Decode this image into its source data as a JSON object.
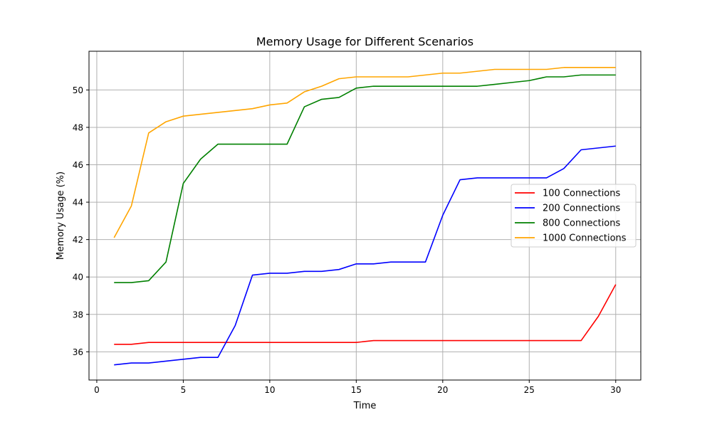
{
  "chart_data": {
    "type": "line",
    "title": "Memory Usage for Different Scenarios",
    "xlabel": "Time",
    "ylabel": "Memory Usage (%)",
    "xlim": [
      -0.45,
      31.45
    ],
    "ylim": [
      34.49,
      52.07
    ],
    "xticks": [
      0,
      5,
      10,
      15,
      20,
      25,
      30
    ],
    "yticks": [
      36,
      38,
      40,
      42,
      44,
      46,
      48,
      50
    ],
    "grid": true,
    "legend_position": "right",
    "x": [
      1,
      2,
      3,
      4,
      5,
      6,
      7,
      8,
      9,
      10,
      11,
      12,
      13,
      14,
      15,
      16,
      17,
      18,
      19,
      20,
      21,
      22,
      23,
      24,
      25,
      26,
      27,
      28,
      29,
      30
    ],
    "series": [
      {
        "name": "100 Connections",
        "color": "#ff0000",
        "values": [
          36.4,
          36.4,
          36.5,
          36.5,
          36.5,
          36.5,
          36.5,
          36.5,
          36.5,
          36.5,
          36.5,
          36.5,
          36.5,
          36.5,
          36.5,
          36.6,
          36.6,
          36.6,
          36.6,
          36.6,
          36.6,
          36.6,
          36.6,
          36.6,
          36.6,
          36.6,
          36.6,
          36.6,
          37.9,
          39.6
        ]
      },
      {
        "name": "200 Connections",
        "color": "#0000ff",
        "values": [
          35.3,
          35.4,
          35.4,
          35.5,
          35.6,
          35.7,
          35.7,
          37.4,
          40.1,
          40.2,
          40.2,
          40.3,
          40.3,
          40.4,
          40.7,
          40.7,
          40.8,
          40.8,
          40.8,
          43.3,
          45.2,
          45.3,
          45.3,
          45.3,
          45.3,
          45.3,
          45.8,
          46.8,
          46.9,
          47.0
        ]
      },
      {
        "name": "800 Connections",
        "color": "#008000",
        "values": [
          39.7,
          39.7,
          39.8,
          40.8,
          45.0,
          46.3,
          47.1,
          47.1,
          47.1,
          47.1,
          47.1,
          49.1,
          49.5,
          49.6,
          50.1,
          50.2,
          50.2,
          50.2,
          50.2,
          50.2,
          50.2,
          50.2,
          50.3,
          50.4,
          50.5,
          50.7,
          50.7,
          50.8,
          50.8,
          50.8
        ]
      },
      {
        "name": "1000 Connections",
        "color": "#ffa500",
        "values": [
          42.1,
          43.8,
          47.7,
          48.3,
          48.6,
          48.7,
          48.8,
          48.9,
          49.0,
          49.2,
          49.3,
          49.9,
          50.2,
          50.6,
          50.7,
          50.7,
          50.7,
          50.7,
          50.8,
          50.9,
          50.9,
          51.0,
          51.1,
          51.1,
          51.1,
          51.1,
          51.2,
          51.2,
          51.2,
          51.2
        ]
      }
    ]
  }
}
